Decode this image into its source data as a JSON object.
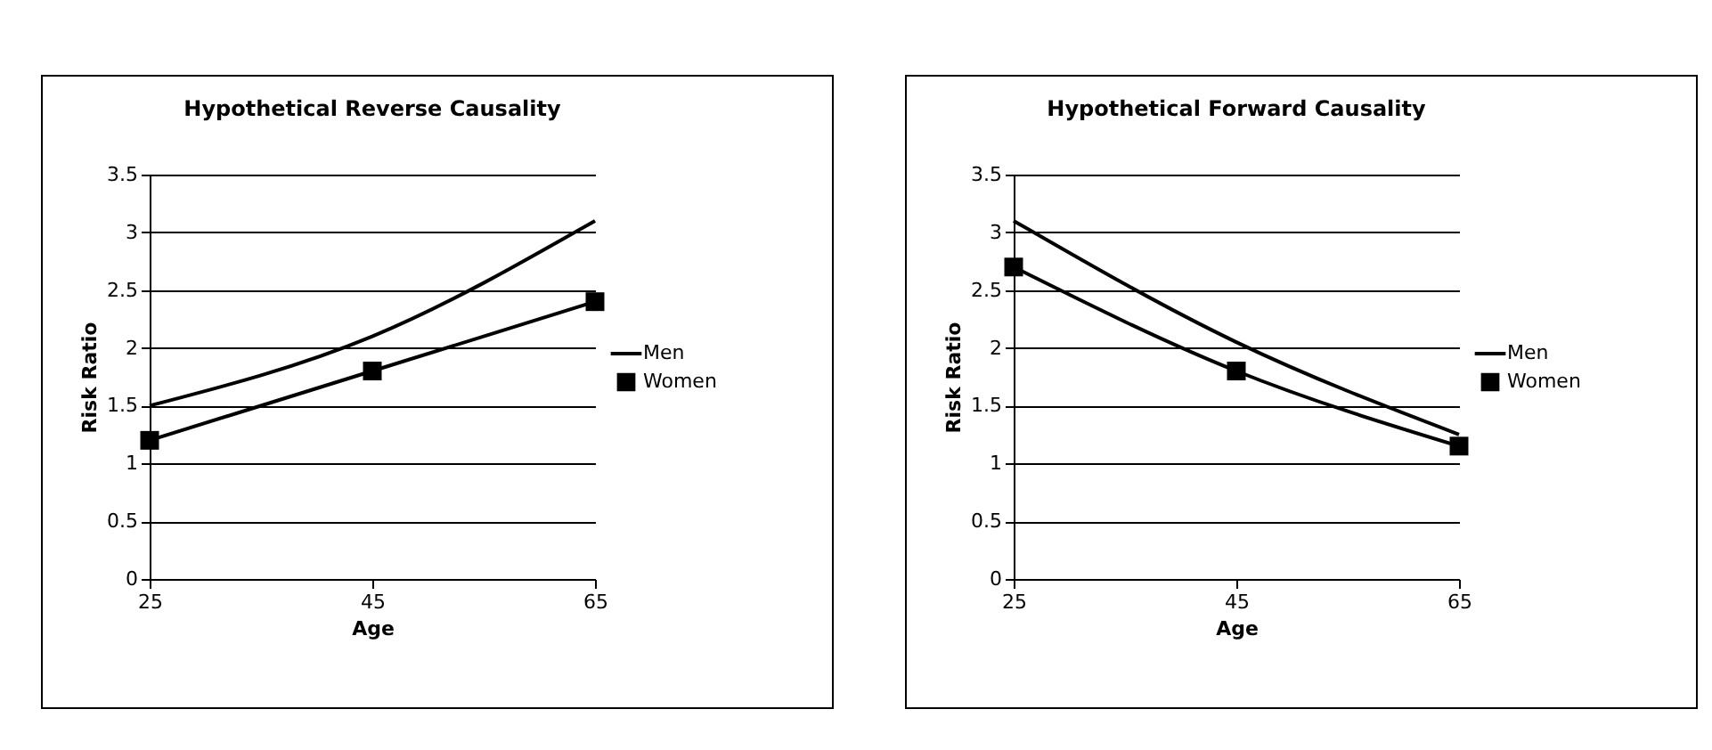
{
  "chart_data": [
    {
      "type": "line",
      "title": "Hypothetical Reverse Causality",
      "xlabel": "Age",
      "ylabel": "Risk Ratio",
      "x": [
        25,
        45,
        65
      ],
      "xlim": [
        25,
        65
      ],
      "xticks": [
        25,
        45,
        65
      ],
      "ylim": [
        0,
        3.5
      ],
      "yticks": [
        0,
        0.5,
        1,
        1.5,
        2,
        2.5,
        3,
        3.5
      ],
      "grid": "y",
      "legend": "right",
      "series": [
        {
          "name": "Men",
          "color": "#000000",
          "marker": "none",
          "values": [
            1.5,
            2.1,
            3.1
          ]
        },
        {
          "name": "Women",
          "color": "#000000",
          "marker": "square",
          "values": [
            1.2,
            1.8,
            2.4
          ]
        }
      ]
    },
    {
      "type": "line",
      "title": "Hypothetical Forward Causality",
      "xlabel": "Age",
      "ylabel": "Risk Ratio",
      "x": [
        25,
        45,
        65
      ],
      "xlim": [
        25,
        65
      ],
      "xticks": [
        25,
        45,
        65
      ],
      "ylim": [
        0,
        3.5
      ],
      "yticks": [
        0,
        0.5,
        1,
        1.5,
        2,
        2.5,
        3,
        3.5
      ],
      "grid": "y",
      "legend": "right",
      "series": [
        {
          "name": "Men",
          "color": "#000000",
          "marker": "none",
          "values": [
            3.1,
            2.05,
            1.25
          ]
        },
        {
          "name": "Women",
          "color": "#000000",
          "marker": "square",
          "values": [
            2.7,
            1.8,
            1.15
          ]
        }
      ]
    }
  ]
}
